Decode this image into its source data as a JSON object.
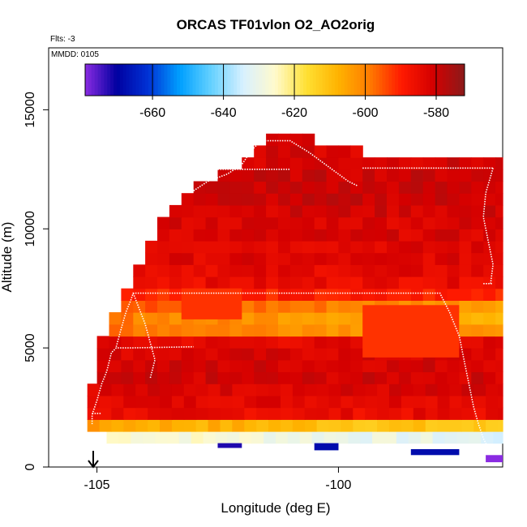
{
  "chart_data": {
    "type": "heatmap",
    "title": "ORCAS TF01vlon O2_AO2orig",
    "flights_label": "Flts: -3",
    "date_label": "MMDD: 0105",
    "xlabel": "Longitude (deg E)",
    "ylabel": "Altitude (m)",
    "xlim": [
      -106,
      -96.6
    ],
    "ylim": [
      0,
      17600
    ],
    "x_ticks": [
      -105,
      -100
    ],
    "x_tick_labels": [
      "-105",
      "-100"
    ],
    "y_ticks": [
      0,
      5000,
      10000,
      15000
    ],
    "y_tick_labels": [
      "0",
      "5000",
      "10000",
      "15000"
    ],
    "colorbar": {
      "range": [
        -679,
        -572
      ],
      "ticks": [
        -660,
        -640,
        -620,
        -600,
        -580
      ],
      "tick_labels": [
        "-660",
        "-640",
        "-620",
        "-600",
        "-580"
      ],
      "colors": [
        "#8a2be2",
        "#0000a0",
        "#0033d6",
        "#00a0ff",
        "#66d2ff",
        "#d8f0ff",
        "#fffacd",
        "#ffe033",
        "#ffb300",
        "#ff7b00",
        "#ff1a00",
        "#d40000",
        "#8b1a1a"
      ]
    },
    "field": {
      "bin_width_deg": 0.25,
      "bin_height_m": 500,
      "rows": [
        {
          "alt": 1250,
          "x0": -104.8,
          "x1": -96.6,
          "value": -628
        },
        {
          "alt": 1750,
          "x0": -105.2,
          "x1": -96.6,
          "value": -608
        },
        {
          "alt": 2250,
          "x0": -105.2,
          "x1": -96.6,
          "value": -585
        },
        {
          "alt": 2750,
          "x0": -105.2,
          "x1": -96.6,
          "value": -583
        },
        {
          "alt": 3250,
          "x0": -105.2,
          "x1": -96.6,
          "value": -582
        },
        {
          "alt": 3750,
          "x0": -105.0,
          "x1": -96.6,
          "value": -581
        },
        {
          "alt": 4250,
          "x0": -105.0,
          "x1": -96.6,
          "value": -581
        },
        {
          "alt": 4750,
          "x0": -105.0,
          "x1": -96.6,
          "value": -582
        },
        {
          "alt": 5250,
          "x0": -105.0,
          "x1": -96.6,
          "value": -584
        },
        {
          "alt": 5750,
          "x0": -104.75,
          "x1": -96.6,
          "value": -600
        },
        {
          "alt": 6250,
          "x0": -104.75,
          "x1": -96.6,
          "value": -602
        },
        {
          "alt": 6750,
          "x0": -104.5,
          "x1": -96.6,
          "value": -598
        },
        {
          "alt": 7250,
          "x0": -104.5,
          "x1": -96.6,
          "value": -590
        },
        {
          "alt": 7750,
          "x0": -104.25,
          "x1": -96.6,
          "value": -585
        },
        {
          "alt": 8250,
          "x0": -104.25,
          "x1": -96.6,
          "value": -584
        },
        {
          "alt": 8750,
          "x0": -104.0,
          "x1": -96.6,
          "value": -583
        },
        {
          "alt": 9250,
          "x0": -104.0,
          "x1": -96.6,
          "value": -583
        },
        {
          "alt": 9750,
          "x0": -103.75,
          "x1": -96.6,
          "value": -582
        },
        {
          "alt": 10250,
          "x0": -103.75,
          "x1": -96.6,
          "value": -582
        },
        {
          "alt": 10750,
          "x0": -103.5,
          "x1": -96.6,
          "value": -581
        },
        {
          "alt": 11250,
          "x0": -103.25,
          "x1": -96.6,
          "value": -580
        },
        {
          "alt": 11750,
          "x0": -103.0,
          "x1": -96.6,
          "value": -580
        },
        {
          "alt": 12250,
          "x0": -102.5,
          "x1": -96.6,
          "value": -580
        },
        {
          "alt": 12750,
          "x0": -102.0,
          "x1": -96.6,
          "value": -581
        },
        {
          "alt": 13250,
          "x0": -101.75,
          "x1": -99.5,
          "value": -582
        },
        {
          "alt": 13750,
          "x0": -101.5,
          "x1": -100.5,
          "value": -583
        }
      ],
      "patches": [
        {
          "x": -100.5,
          "x1": -100.0,
          "alt": 700,
          "alt1": 1000,
          "value": -668
        },
        {
          "x": -98.5,
          "x1": -97.5,
          "alt": 500,
          "alt1": 750,
          "value": -668
        },
        {
          "x": -102.5,
          "x1": -102.0,
          "alt": 800,
          "alt1": 1000,
          "value": -672
        },
        {
          "x": -96.95,
          "x1": -96.6,
          "alt": 200,
          "alt1": 500,
          "value": -679
        },
        {
          "x": -103.25,
          "x1": -102.0,
          "alt": 6200,
          "alt1": 7500,
          "value": -592
        },
        {
          "x": -99.5,
          "x1": -97.5,
          "alt": 4600,
          "alt1": 6800,
          "value": -592
        }
      ]
    },
    "flight_track": {
      "color": "#ffffff",
      "segments": [
        [
          [
            -105.1,
            1800
          ],
          [
            -105.1,
            2200
          ],
          [
            -105.0,
            2800
          ],
          [
            -104.9,
            3500
          ],
          [
            -104.8,
            4000
          ],
          [
            -104.75,
            4400
          ],
          [
            -104.7,
            4800
          ],
          [
            -104.6,
            5000
          ],
          [
            -104.3,
            5000
          ],
          [
            -103.0,
            5050
          ]
        ],
        [
          [
            -105.1,
            2250
          ],
          [
            -104.9,
            2250
          ]
        ],
        [
          [
            -104.6,
            5050
          ],
          [
            -104.5,
            5800
          ],
          [
            -104.4,
            6500
          ],
          [
            -104.3,
            7000
          ],
          [
            -104.25,
            7300
          ],
          [
            -97.9,
            7300
          ],
          [
            -97.7,
            6500
          ],
          [
            -97.5,
            5500
          ],
          [
            -97.4,
            4500
          ],
          [
            -97.3,
            3500
          ],
          [
            -97.2,
            2500
          ],
          [
            -97.1,
            1800
          ],
          [
            -97.0,
            1200
          ],
          [
            -96.9,
            800
          ]
        ],
        [
          [
            -104.25,
            7300
          ],
          [
            -104.0,
            6000
          ],
          [
            -103.8,
            4500
          ],
          [
            -103.9,
            3700
          ]
        ],
        [
          [
            -103.0,
            11600
          ],
          [
            -102.7,
            12000
          ],
          [
            -102.3,
            12300
          ],
          [
            -102.0,
            12700
          ],
          [
            -101.8,
            13300
          ],
          [
            -101.6,
            13700
          ],
          [
            -101.0,
            13700
          ],
          [
            -100.6,
            13200
          ],
          [
            -100.2,
            12600
          ],
          [
            -99.8,
            12000
          ],
          [
            -99.6,
            11800
          ]
        ],
        [
          [
            -102.5,
            12500
          ],
          [
            -101.0,
            12500
          ]
        ],
        [
          [
            -99.5,
            12550
          ],
          [
            -96.8,
            12550
          ]
        ],
        [
          [
            -96.8,
            12550
          ],
          [
            -96.95,
            11500
          ],
          [
            -97.0,
            10500
          ],
          [
            -96.9,
            9500
          ],
          [
            -96.8,
            8500
          ],
          [
            -96.85,
            7700
          ]
        ],
        [
          [
            -97.0,
            7700
          ],
          [
            -96.8,
            7700
          ]
        ],
        [
          [
            -96.9,
            700
          ],
          [
            -96.7,
            700
          ]
        ]
      ]
    }
  }
}
